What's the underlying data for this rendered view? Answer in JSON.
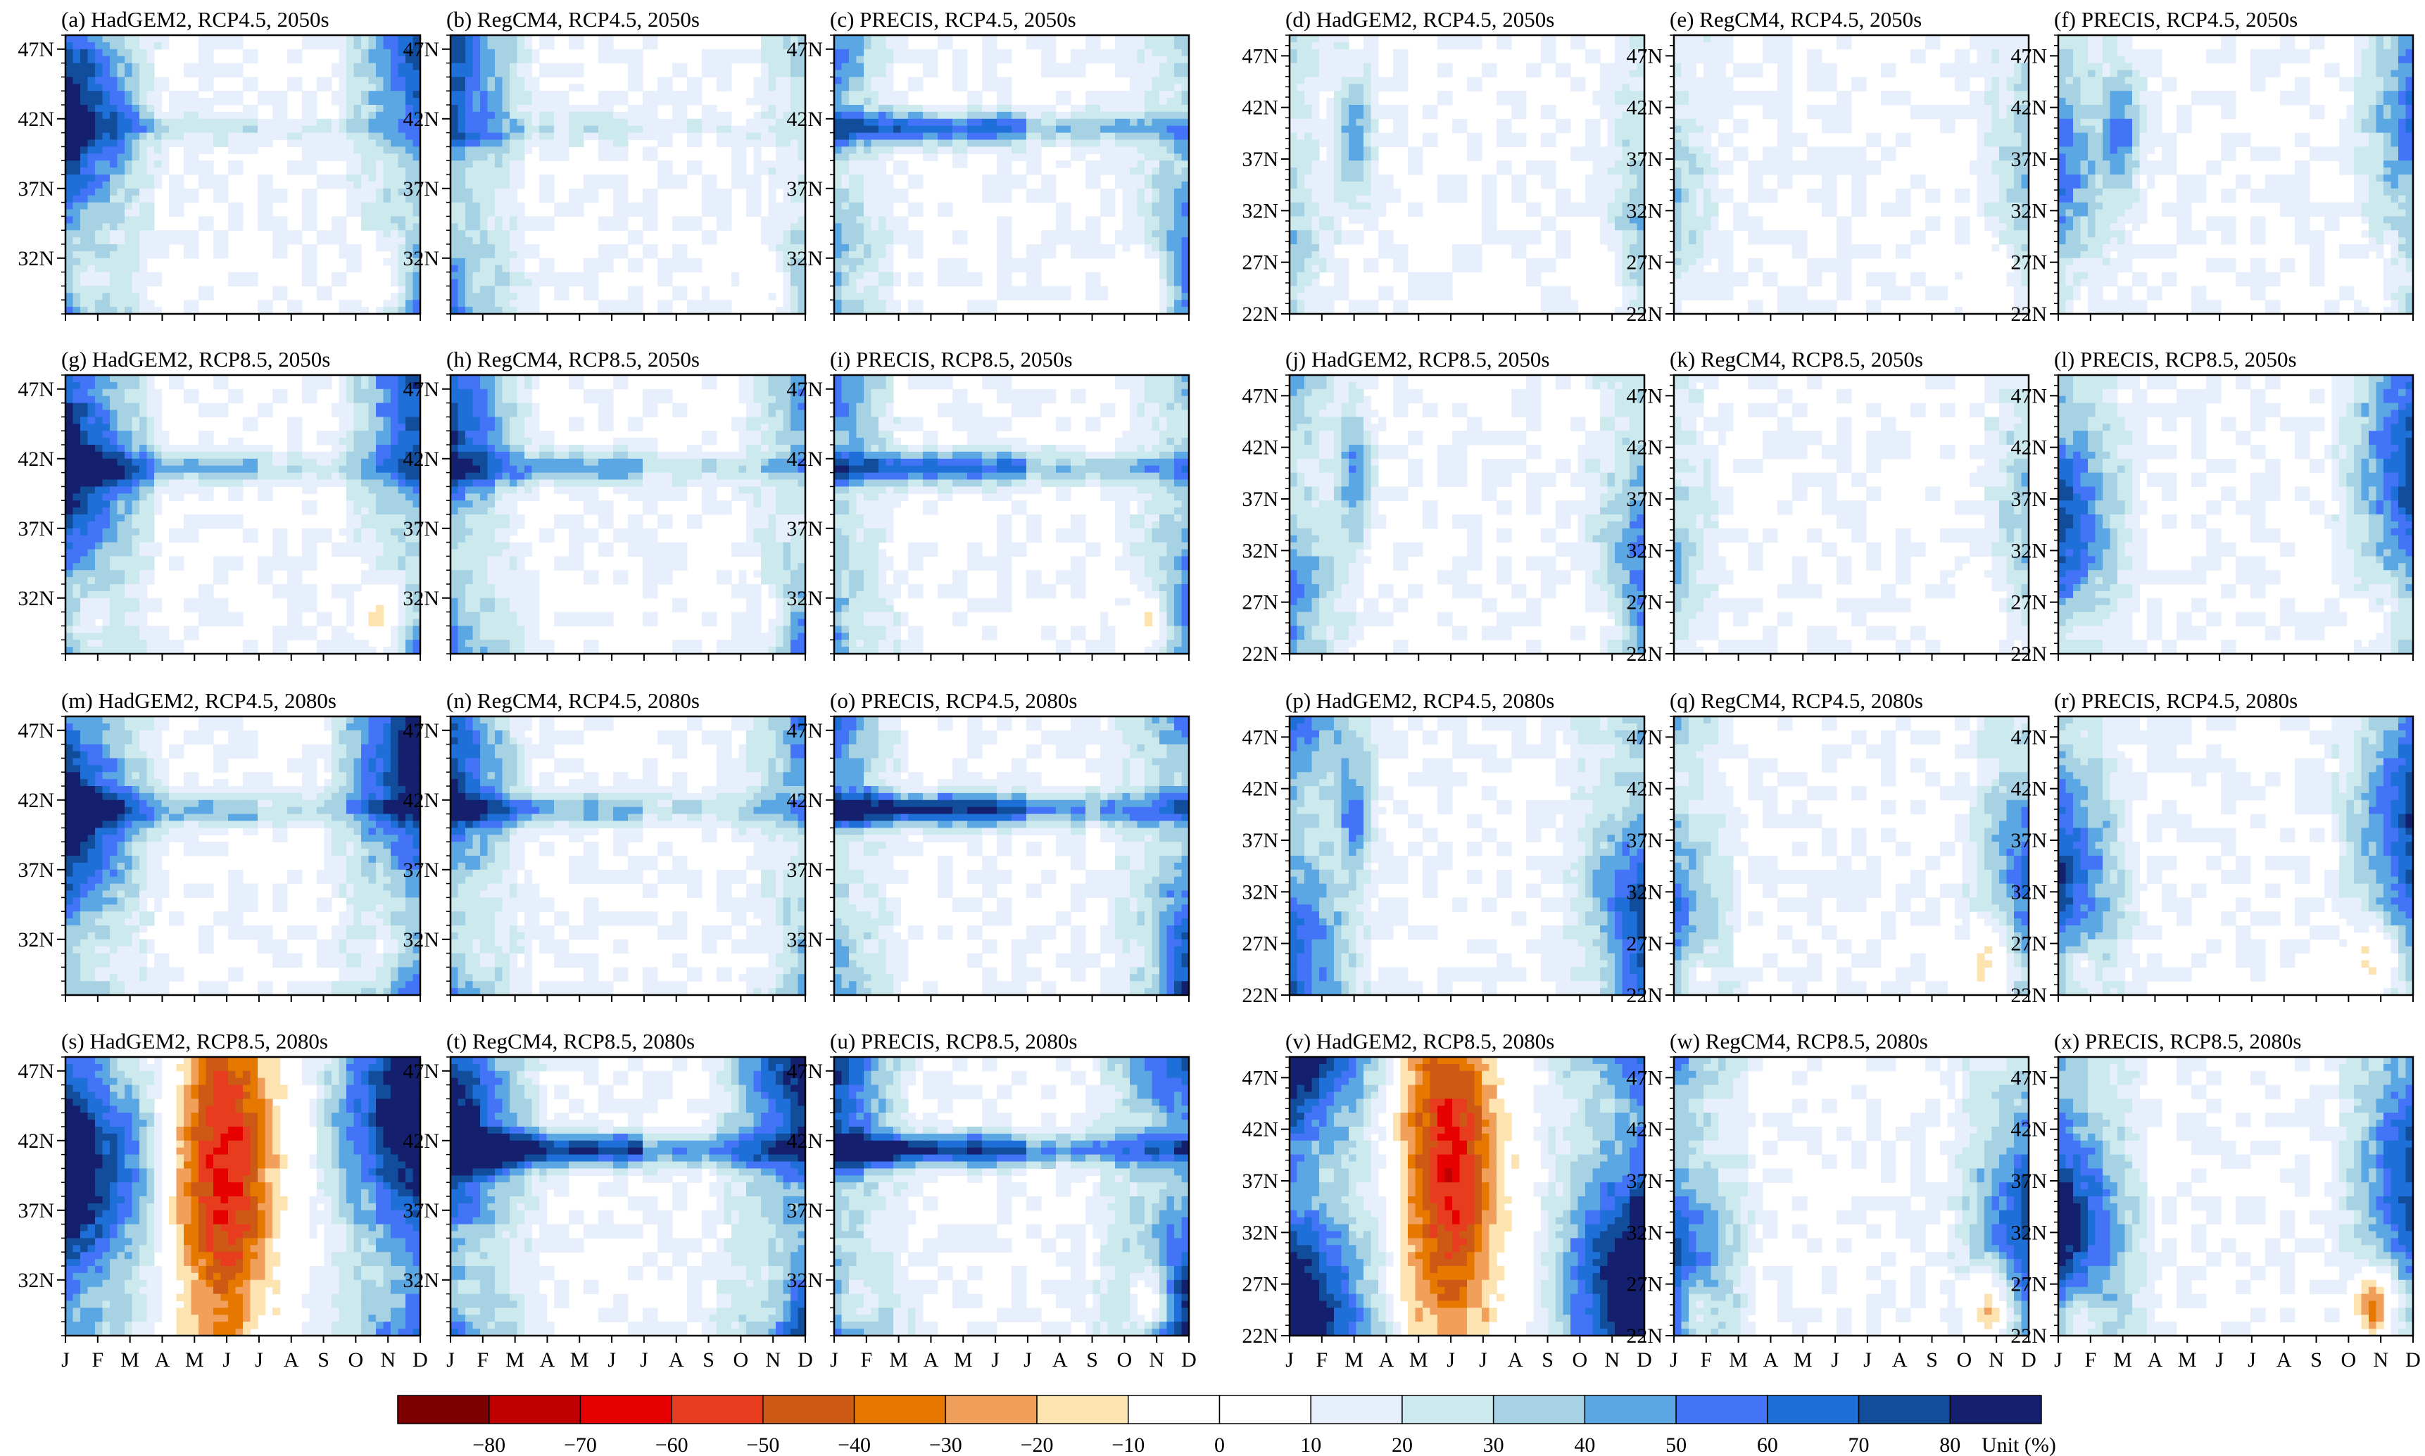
{
  "chart_data": {
    "type": "heatmap",
    "description_grid": "4 rows x 6 columns of contour panels; x axis months J..D, y axis latitude",
    "x_months": [
      "J",
      "F",
      "M",
      "A",
      "M",
      "J",
      "J",
      "A",
      "S",
      "O",
      "N",
      "D"
    ],
    "y_ticks_left": [
      "47N",
      "42N",
      "37N",
      "32N"
    ],
    "y_ticks_right": [
      "47N",
      "42N",
      "37N",
      "32N",
      "27N",
      "22N"
    ],
    "y_range_left": [
      28,
      48
    ],
    "y_range_right": [
      22,
      49
    ],
    "panels": [
      {
        "label": "(a) HadGEM2, RCP4.5, 2050s",
        "region": "left",
        "pattern": {
          "west": 4,
          "east": 3,
          "band": 1,
          "orange": 2
        }
      },
      {
        "label": "(b) RegCM4, RCP4.5, 2050s",
        "region": "left",
        "pattern": {
          "west": 3,
          "east": 1,
          "band": 1,
          "orange": 1
        }
      },
      {
        "label": "(c) PRECIS, RCP4.5, 2050s",
        "region": "left",
        "pattern": {
          "west": 2,
          "east": 2,
          "band": 3,
          "orange": 2
        }
      },
      {
        "label": "(d) HadGEM2, RCP4.5, 2050s",
        "region": "right",
        "pattern": {
          "west": 1,
          "east": 1,
          "band": 0,
          "orange": 1,
          "mar": 2
        }
      },
      {
        "label": "(e) RegCM4, RCP4.5, 2050s",
        "region": "right",
        "pattern": {
          "west": 1,
          "east": 1,
          "band": 0,
          "orange": 1
        }
      },
      {
        "label": "(f) PRECIS, RCP4.5, 2050s",
        "region": "right",
        "pattern": {
          "west": 2,
          "east": 2,
          "band": 0,
          "orange": 1,
          "mar": 2
        }
      },
      {
        "label": "(g) HadGEM2, RCP8.5, 2050s",
        "region": "left",
        "pattern": {
          "west": 4,
          "east": 3,
          "band": 2,
          "orange": 2
        }
      },
      {
        "label": "(h) RegCM4, RCP8.5, 2050s",
        "region": "left",
        "pattern": {
          "west": 3,
          "east": 2,
          "band": 2,
          "orange": 1
        }
      },
      {
        "label": "(i) PRECIS, RCP8.5, 2050s",
        "region": "left",
        "pattern": {
          "west": 2,
          "east": 2,
          "band": 3,
          "orange": 2
        }
      },
      {
        "label": "(j) HadGEM2, RCP8.5, 2050s",
        "region": "right",
        "pattern": {
          "west": 2,
          "east": 2,
          "band": 0,
          "orange": 1,
          "mar": 2
        }
      },
      {
        "label": "(k) RegCM4, RCP8.5, 2050s",
        "region": "right",
        "pattern": {
          "west": 1,
          "east": 1,
          "band": 0,
          "orange": 1
        }
      },
      {
        "label": "(l) PRECIS, RCP8.5, 2050s",
        "region": "right",
        "pattern": {
          "west": 3,
          "east": 3,
          "band": 0,
          "orange": 1
        }
      },
      {
        "label": "(m) HadGEM2, RCP4.5, 2080s",
        "region": "left",
        "pattern": {
          "west": 4,
          "east": 4,
          "band": 2,
          "orange": 1
        }
      },
      {
        "label": "(n) RegCM4, RCP4.5, 2080s",
        "region": "left",
        "pattern": {
          "west": 3,
          "east": 2,
          "band": 2,
          "orange": 1
        }
      },
      {
        "label": "(o) PRECIS, RCP4.5, 2080s",
        "region": "left",
        "pattern": {
          "west": 2,
          "east": 3,
          "band": 4,
          "orange": 1
        }
      },
      {
        "label": "(p) HadGEM2, RCP4.5, 2080s",
        "region": "right",
        "pattern": {
          "west": 3,
          "east": 3,
          "band": 0,
          "orange": 1,
          "mar": 2
        }
      },
      {
        "label": "(q) RegCM4, RCP4.5, 2080s",
        "region": "right",
        "pattern": {
          "west": 2,
          "east": 2,
          "band": 0,
          "orange": 2
        }
      },
      {
        "label": "(r) PRECIS, RCP4.5, 2080s",
        "region": "right",
        "pattern": {
          "west": 3,
          "east": 3,
          "band": 0,
          "orange": 2
        }
      },
      {
        "label": "(s) HadGEM2, RCP8.5, 2080s",
        "region": "left",
        "pattern": {
          "west": 5,
          "east": 5,
          "band": 0,
          "orange": 4
        }
      },
      {
        "label": "(t) RegCM4, RCP8.5, 2080s",
        "region": "left",
        "pattern": {
          "west": 4,
          "east": 4,
          "band": 4,
          "orange": 1
        }
      },
      {
        "label": "(u) PRECIS, RCP8.5, 2080s",
        "region": "left",
        "pattern": {
          "west": 3,
          "east": 4,
          "band": 4,
          "orange": 3
        }
      },
      {
        "label": "(v) HadGEM2, RCP8.5, 2080s",
        "region": "right",
        "pattern": {
          "west": 5,
          "east": 5,
          "band": 0,
          "orange": 4
        }
      },
      {
        "label": "(w) RegCM4, RCP8.5, 2080s",
        "region": "right",
        "pattern": {
          "west": 3,
          "east": 3,
          "band": 0,
          "orange": 3
        }
      },
      {
        "label": "(x) PRECIS, RCP8.5, 2080s",
        "region": "right",
        "pattern": {
          "west": 4,
          "east": 3,
          "band": 0,
          "orange": 3
        }
      }
    ],
    "colorbar": {
      "colors": [
        "#7d0000",
        "#c00000",
        "#e60000",
        "#e83c1e",
        "#cc5a14",
        "#e67800",
        "#f0a05a",
        "#fde3b0",
        "#ffffff",
        "#ffffff",
        "#e6effb",
        "#cce9ee",
        "#a7d2e4",
        "#5ba7e3",
        "#4374f7",
        "#1f6fd9",
        "#124d9c",
        "#141f6e"
      ],
      "tick_labels": [
        "−80",
        "−70",
        "−60",
        "−50",
        "−40",
        "−30",
        "−20",
        "−10",
        "0",
        "10",
        "20",
        "30",
        "40",
        "50",
        "60",
        "70",
        "80"
      ],
      "unit": "Unit (%)"
    }
  }
}
